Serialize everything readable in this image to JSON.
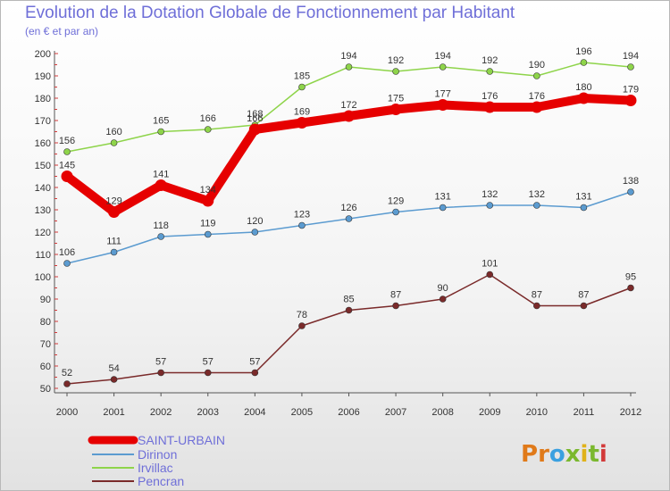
{
  "title": "Evolution de la Dotation Globale de Fonctionnement par Habitant",
  "subtitle": "(en € et par an)",
  "logo": {
    "text": "Proxiti",
    "letters": [
      "P",
      "r",
      "o",
      "x",
      "i",
      "t",
      "i"
    ],
    "colors": [
      "#e07a1a",
      "#e07a1a",
      "#3aa0e0",
      "#7ab82e",
      "#e0b21a",
      "#7ab82e",
      "#d23a3a"
    ]
  },
  "chart_data": {
    "type": "line",
    "title": "Evolution de la Dotation Globale de Fonctionnement par Habitant",
    "subtitle": "(en € et par an)",
    "x": [
      2000,
      2001,
      2002,
      2003,
      2004,
      2005,
      2006,
      2007,
      2008,
      2009,
      2010,
      2011,
      2012
    ],
    "ylim": [
      50,
      200
    ],
    "ytick_step": 10,
    "grid": false,
    "legend_position": "bottom-left",
    "series": [
      {
        "name": "Pencran",
        "color": "#7a2a2a",
        "values": [
          52,
          54,
          57,
          57,
          57,
          78,
          85,
          87,
          90,
          101,
          87,
          87,
          95
        ]
      },
      {
        "name": "Dirinon",
        "color": "#5b9bd0",
        "values": [
          106,
          111,
          118,
          119,
          120,
          123,
          126,
          129,
          131,
          132,
          132,
          131,
          138
        ]
      },
      {
        "name": "Irvillac",
        "color": "#8ed44a",
        "values": [
          156,
          160,
          165,
          166,
          168,
          185,
          194,
          192,
          194,
          192,
          190,
          196,
          194
        ]
      },
      {
        "name": "SAINT-URBAIN",
        "color": "#e60000",
        "values": [
          145,
          129,
          141,
          134,
          166,
          169,
          172,
          175,
          177,
          176,
          176,
          180,
          179
        ]
      }
    ],
    "legend_order": [
      "SAINT-URBAIN",
      "Dirinon",
      "Irvillac",
      "Pencran"
    ]
  }
}
